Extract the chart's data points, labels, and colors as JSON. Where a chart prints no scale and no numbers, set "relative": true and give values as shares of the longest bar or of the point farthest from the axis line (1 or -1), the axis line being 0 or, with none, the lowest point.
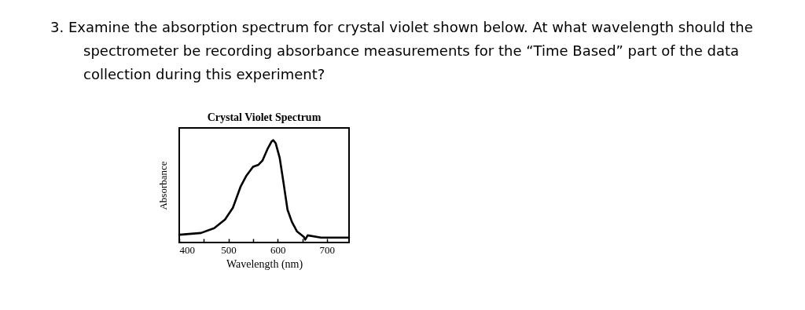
{
  "chart_data": {
    "type": "line",
    "title": "Crystal Violet Spectrum",
    "xlabel": "Wavelength (nm)",
    "ylabel": "Absorbance",
    "annotations": [
      "3. Examine the absorption spectrum for crystal violet shown below.  At what wavelength should the spectrometer be recording absorbance measurements for the “Time Based” part of the data collection during this experiment?"
    ],
    "relative": true,
    "grid": false,
    "marker": "none",
    "line_style": "solid",
    "xlim": [
      400,
      745
    ],
    "xticks": [
      400,
      {
        "value": 450,
        "label": null
      },
      500,
      {
        "value": 550,
        "label": null
      },
      600,
      {
        "value": 650,
        "label": null
      },
      700
    ],
    "series": [
      {
        "color": "#000000",
        "x": [
          400,
          444,
          471,
          493,
          509,
          525,
          536,
          550,
          561,
          569,
          580,
          588,
          591,
          596,
          604,
          612,
          620,
          629,
          639,
          653,
          656,
          661,
          688,
          745
        ],
        "values": [
          0.076,
          0.093,
          0.14,
          0.225,
          0.34,
          0.55,
          0.65,
          0.74,
          0.76,
          0.8,
          0.92,
          0.99,
          1,
          0.97,
          0.83,
          0.58,
          0.32,
          0.2,
          0.11,
          0.056,
          0.028,
          0.07,
          0.048,
          0.048
        ]
      }
    ]
  }
}
